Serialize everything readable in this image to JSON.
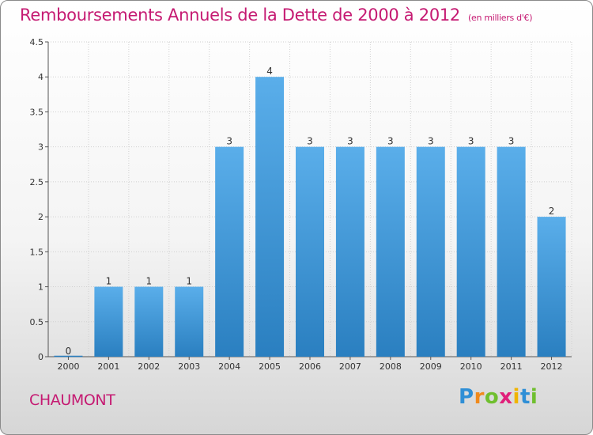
{
  "title": "Remboursements Annuels de la Dette de 2000 à 2012",
  "unit_note": "(en milliers d'€)",
  "place": "CHAUMONT",
  "logo": {
    "text": "Proxiti",
    "letter_colors": [
      "#2f8fd6",
      "#f08a1c",
      "#6fbf2e",
      "#e0207a",
      "#f0b400",
      "#2f8fd6",
      "#6fbf2e"
    ]
  },
  "colors": {
    "title": "#c51a72",
    "bar_light": "#5aaeea",
    "bar_dark": "#2a7fc0",
    "grid": "#d0d0d0",
    "axis": "#555555"
  },
  "chart_data": {
    "type": "bar",
    "categories": [
      "2000",
      "2001",
      "2002",
      "2003",
      "2004",
      "2005",
      "2006",
      "2007",
      "2008",
      "2009",
      "2010",
      "2011",
      "2012"
    ],
    "values": [
      0,
      1,
      1,
      1,
      3,
      4,
      3,
      3,
      3,
      3,
      3,
      3,
      2
    ],
    "data_labels": [
      "0",
      "1",
      "1",
      "1",
      "3",
      "4",
      "3",
      "3",
      "3",
      "3",
      "3",
      "3",
      "2"
    ],
    "yticks": [
      "0",
      "0.5",
      "1",
      "1.5",
      "2",
      "2.5",
      "3",
      "3.5",
      "4",
      "4.5"
    ],
    "ylim": [
      0,
      4.5
    ],
    "grid": true
  }
}
